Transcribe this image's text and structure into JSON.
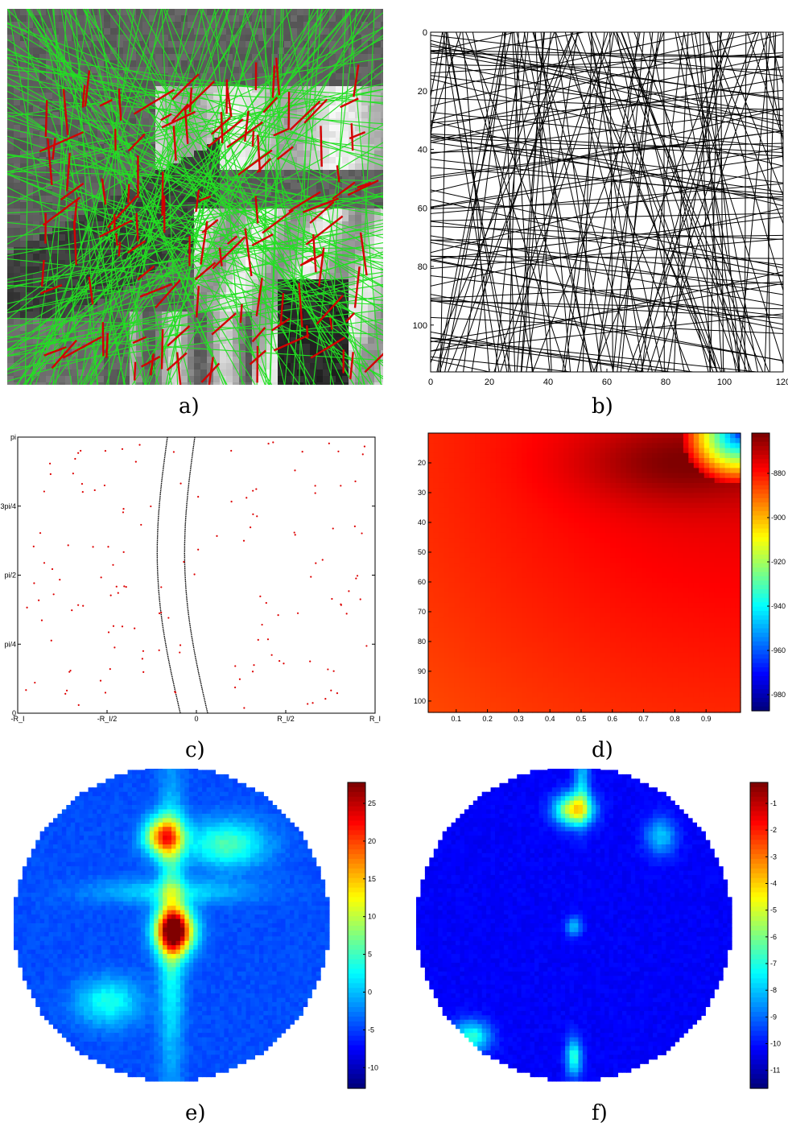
{
  "captions": [
    "a)",
    "b)",
    "c)",
    "d)",
    "e)",
    "f)"
  ],
  "chart_data": [
    {
      "panel": "a",
      "type": "image",
      "description_colors": {
        "detected_segments": "#d40000",
        "extended_lines": "#22e022",
        "background": "grayscale"
      }
    },
    {
      "panel": "b",
      "type": "line",
      "xlim": [
        0,
        120
      ],
      "ylim": [
        0,
        116
      ],
      "y_reversed": true,
      "x_ticks": [
        "0",
        "20",
        "40",
        "60",
        "80",
        "100",
        "120"
      ],
      "y_ticks": [
        "0",
        "20",
        "40",
        "60",
        "80",
        "100"
      ],
      "line_color": "#000000",
      "line_count": 170
    },
    {
      "panel": "c",
      "type": "scatter",
      "x_ticks": [
        "-R_I",
        "-R_I/2",
        "0",
        "R_I/2",
        "R_I"
      ],
      "y_ticks": [
        "0",
        "pi/4",
        "pi/2",
        "3pi/4",
        "pi"
      ],
      "point_color": "#dd0000",
      "curve_color": "#000000"
    },
    {
      "panel": "d",
      "type": "heatmap",
      "x_ticks": [
        "0.1",
        "0.2",
        "0.3",
        "0.4",
        "0.5",
        "0.6",
        "0.7",
        "0.8",
        "0.9"
      ],
      "y_ticks": [
        "20",
        "30",
        "40",
        "50",
        "60",
        "70",
        "80",
        "90",
        "100"
      ],
      "colorbar_ticks": [
        "-880",
        "-900",
        "-920",
        "-940",
        "-960",
        "-980"
      ],
      "colormap": "jet"
    },
    {
      "panel": "e",
      "type": "heatmap",
      "shape": "disk",
      "colorbar_ticks": [
        "25",
        "20",
        "15",
        "10",
        "5",
        "0",
        "-5",
        "-10"
      ],
      "colormap": "jet"
    },
    {
      "panel": "f",
      "type": "heatmap",
      "shape": "disk",
      "colorbar_ticks": [
        "-1",
        "-2",
        "-3",
        "-4",
        "-5",
        "-6",
        "-7",
        "-8",
        "-9",
        "-10",
        "-11"
      ],
      "colormap": "jet"
    }
  ]
}
